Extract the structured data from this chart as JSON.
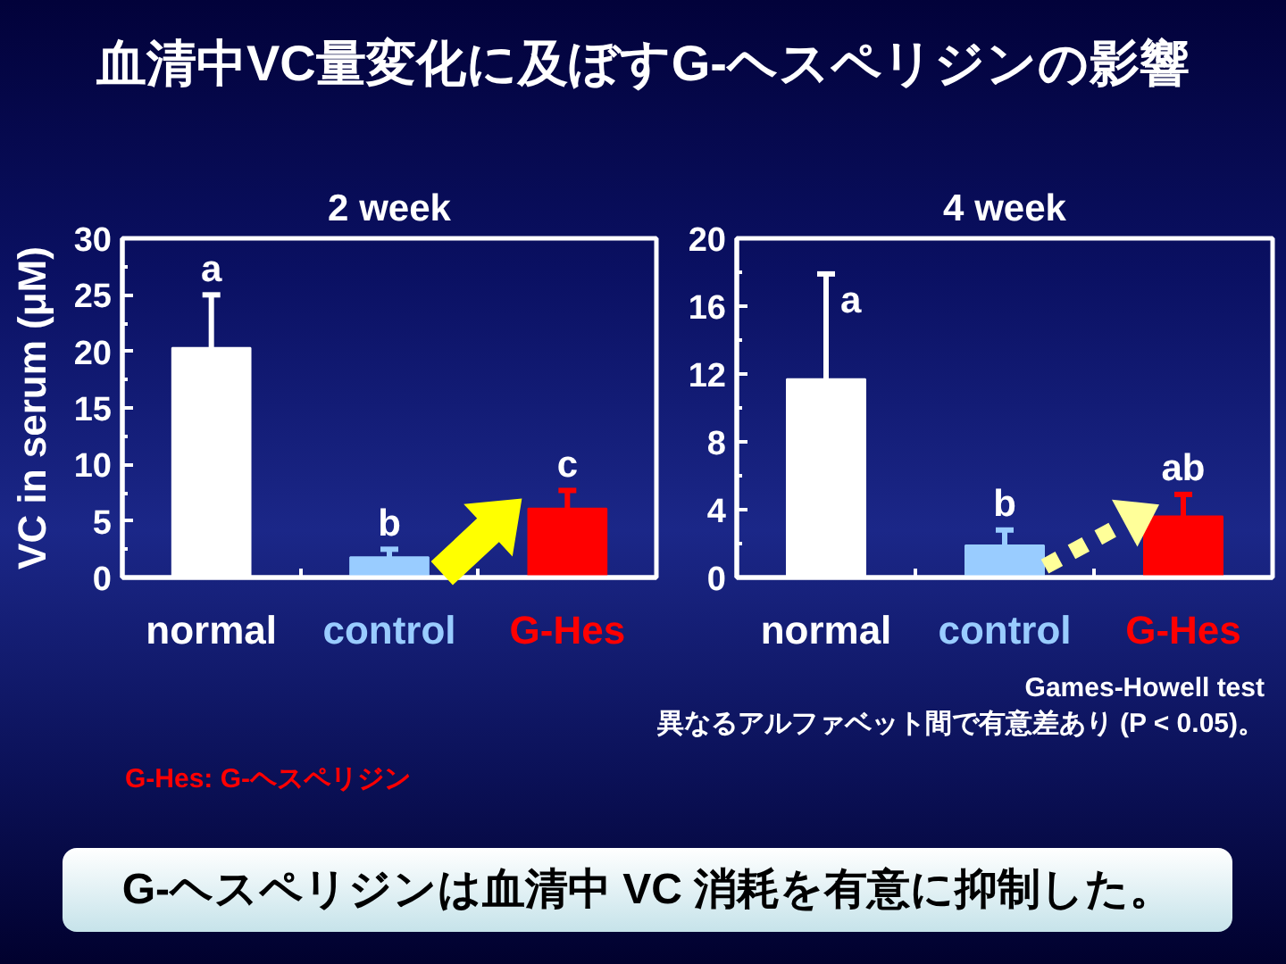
{
  "chart_data": [
    {
      "type": "bar",
      "title": "2 week",
      "ylabel": "VC in serum (μM)",
      "categories": [
        "normal",
        "control",
        "G-Hes"
      ],
      "values": [
        20.3,
        1.8,
        6.1
      ],
      "colors": [
        "#ffffff",
        "#99ccff",
        "#ff0000"
      ],
      "errors": [
        [
          20.3,
          25.0
        ],
        [
          1.8,
          2.5
        ],
        [
          6.1,
          7.7
        ]
      ],
      "value_labels": [
        "a",
        "b",
        "c"
      ],
      "ylim": [
        0,
        30
      ],
      "yticks": [
        0,
        {
          "value": 2.5,
          "label": null
        },
        5,
        {
          "value": 7.5,
          "label": null
        },
        10,
        {
          "value": 12.5,
          "label": null
        },
        15,
        {
          "value": 17.5,
          "label": null
        },
        20,
        {
          "value": 22.5,
          "label": null
        },
        25,
        {
          "value": 27.5,
          "label": null
        },
        30
      ],
      "grid": false,
      "annotations": [
        "血清中VC量変化に及ぼすG-ヘスペリジンの影響"
      ]
    },
    {
      "type": "bar",
      "title": "4 week",
      "categories": [
        "normal",
        "control",
        "G-Hes"
      ],
      "values": [
        11.7,
        1.9,
        3.6
      ],
      "colors": [
        "#ffffff",
        "#99ccff",
        "#ff0000"
      ],
      "errors": [
        [
          11.7,
          17.9
        ],
        [
          1.9,
          2.8
        ],
        [
          3.6,
          4.9
        ]
      ],
      "value_labels": [
        "a",
        "b",
        "ab"
      ],
      "ylim": [
        0,
        20
      ],
      "yticks": [
        0,
        {
          "value": 2,
          "label": null
        },
        4,
        {
          "value": 6,
          "label": null
        },
        8,
        {
          "value": 10,
          "label": null
        },
        12,
        {
          "value": 14,
          "label": null
        },
        16,
        {
          "value": 18,
          "label": null
        },
        20
      ],
      "grid": false,
      "annotations": [
        "Games-Howell test",
        "異なるアルファベット間で有意差あり (P < 0.05)。",
        "G-Hes: G-ヘスペリジン",
        "G-ヘスペリジンは血清中 VC 消耗を有意に抑制した。"
      ]
    }
  ]
}
